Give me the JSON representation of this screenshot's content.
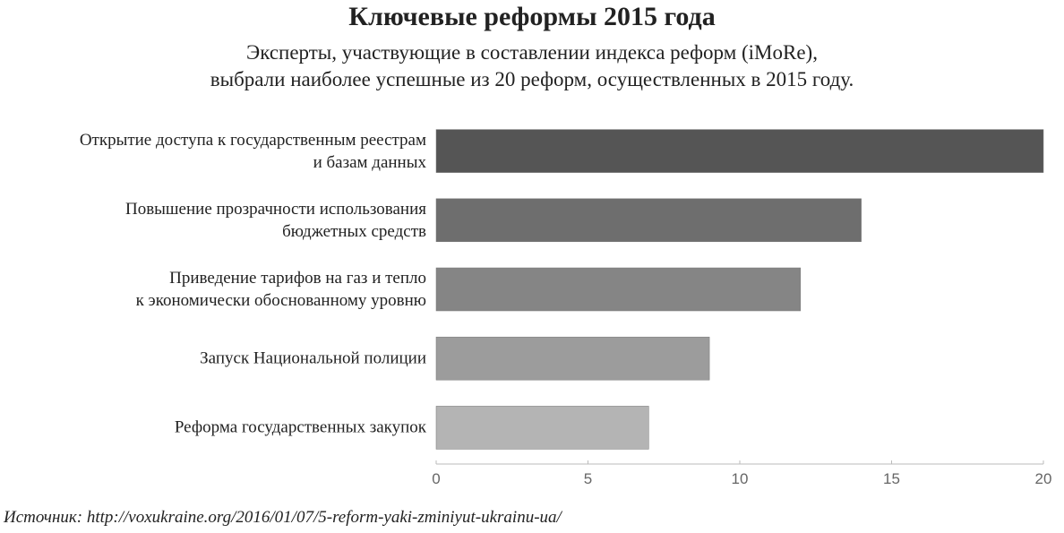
{
  "chart_data": {
    "type": "bar",
    "orientation": "horizontal",
    "title": "Ключевые реформы 2015 года",
    "subtitle": "Эксперты, участвующие в составлении индекса реформ (iMoRe),\nвыбрали наиболее успешные из 20 реформ, осуществленных в 2015 году.",
    "categories": [
      "Открытие доступа к государственным реестрам\nи базам данных",
      "Повышение прозрачности использования\nбюджетных средств",
      "Приведение тарифов на газ и тепло\nк экономически обоснованному уровню",
      "Запуск Национальной полиции",
      "Реформа государственных закупок"
    ],
    "values": [
      20,
      14,
      12,
      9,
      7
    ],
    "colors": [
      "#555555",
      "#6e6e6e",
      "#858585",
      "#9c9c9c",
      "#b4b4b4"
    ],
    "xlim": [
      0,
      20
    ],
    "xticks": [
      0,
      5,
      10,
      15,
      20
    ],
    "source": "Источник: http://voxukraine.org/2016/01/07/5-reform-yaki-zminiyut-ukrainu-ua/"
  }
}
